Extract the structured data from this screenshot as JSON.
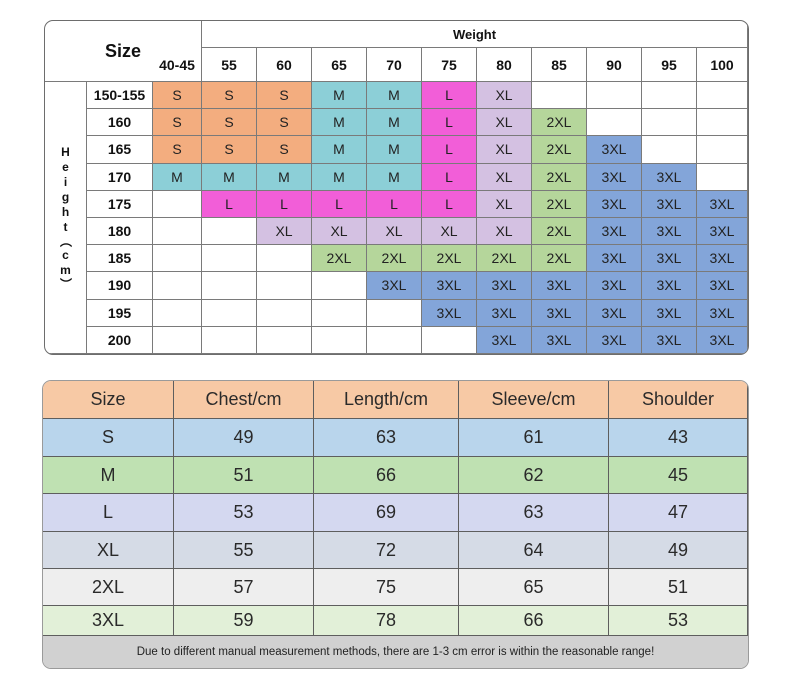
{
  "matrix": {
    "size_label": "Size",
    "weight_label": "Weight",
    "height_label": "Height（cm）",
    "weights": [
      "40-45",
      "55",
      "60",
      "65",
      "70",
      "75",
      "80",
      "85",
      "90",
      "95",
      "100"
    ],
    "heights": [
      "150-155",
      "160",
      "165",
      "170",
      "175",
      "180",
      "185",
      "190",
      "195",
      "200"
    ],
    "grid": [
      [
        "S",
        "S",
        "S",
        "M",
        "M",
        "L",
        "XL",
        "",
        "",
        "",
        ""
      ],
      [
        "S",
        "S",
        "S",
        "M",
        "M",
        "L",
        "XL",
        "2XL",
        "",
        "",
        ""
      ],
      [
        "S",
        "S",
        "S",
        "M",
        "M",
        "L",
        "XL",
        "2XL",
        "3XL",
        "",
        ""
      ],
      [
        "M",
        "M",
        "M",
        "M",
        "M",
        "L",
        "XL",
        "2XL",
        "3XL",
        "3XL",
        ""
      ],
      [
        "",
        "L",
        "L",
        "L",
        "L",
        "L",
        "XL",
        "2XL",
        "3XL",
        "3XL",
        "3XL"
      ],
      [
        "",
        "",
        "XL",
        "XL",
        "XL",
        "XL",
        "XL",
        "2XL",
        "3XL",
        "3XL",
        "3XL"
      ],
      [
        "",
        "",
        "",
        "2XL",
        "2XL",
        "2XL",
        "2XL",
        "2XL",
        "3XL",
        "3XL",
        "3XL"
      ],
      [
        "",
        "",
        "",
        "",
        "3XL",
        "3XL",
        "3XL",
        "3XL",
        "3XL",
        "3XL",
        "3XL"
      ],
      [
        "",
        "",
        "",
        "",
        "",
        "3XL",
        "3XL",
        "3XL",
        "3XL",
        "3XL",
        "3XL"
      ],
      [
        "",
        "",
        "",
        "",
        "",
        "",
        "3XL",
        "3XL",
        "3XL",
        "3XL",
        "3XL"
      ]
    ],
    "colors": {
      "S": "#f3ad7f",
      "M": "#8ccfd7",
      "L": "#f25ed8",
      "XL": "#d4c1e2",
      "2XL": "#b5d69b",
      "3XL": "#83a5d9"
    }
  },
  "measurements": {
    "headers": [
      "Size",
      "Chest/cm",
      "Length/cm",
      "Sleeve/cm",
      "Shoulder"
    ],
    "rows": [
      {
        "size": "S",
        "chest": "49",
        "length": "63",
        "sleeve": "61",
        "shoulder": "43"
      },
      {
        "size": "M",
        "chest": "51",
        "length": "66",
        "sleeve": "62",
        "shoulder": "45"
      },
      {
        "size": "L",
        "chest": "53",
        "length": "69",
        "sleeve": "63",
        "shoulder": "47"
      },
      {
        "size": "XL",
        "chest": "55",
        "length": "72",
        "sleeve": "64",
        "shoulder": "49"
      },
      {
        "size": "2XL",
        "chest": "57",
        "length": "75",
        "sleeve": "65",
        "shoulder": "51"
      },
      {
        "size": "3XL",
        "chest": "59",
        "length": "78",
        "sleeve": "66",
        "shoulder": "53"
      }
    ],
    "header_color": "#f7c9a5",
    "row_colors": [
      "#b9d5ec",
      "#bfe1b2",
      "#d4d8f0",
      "#d5dbe6",
      "#eeeeee",
      "#e2f0d8"
    ],
    "note": "Due to different manual measurement methods, there are 1-3 cm error is within the reasonable range!",
    "note_color": "#d1d1d1"
  }
}
